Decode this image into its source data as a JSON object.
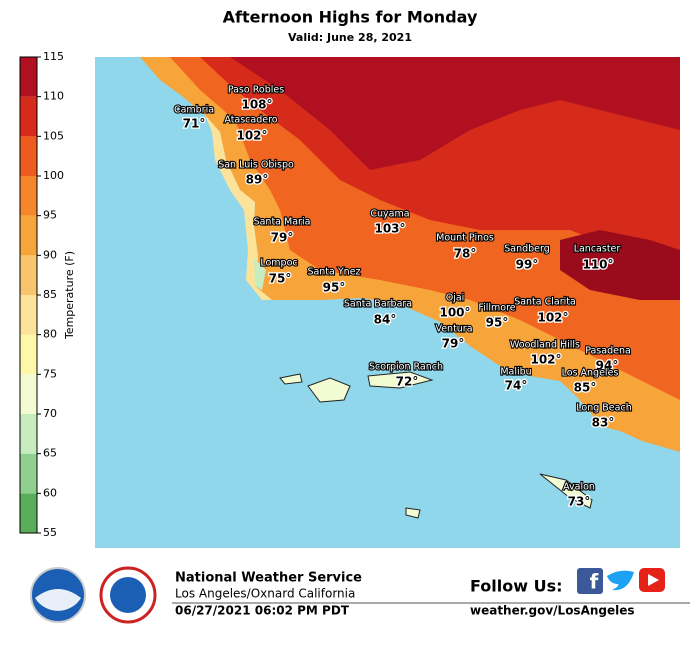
{
  "title": "Afternoon Highs for Monday",
  "subtitle": "Valid: June 28, 2021",
  "colorbar": {
    "label": "Temperature (F)",
    "ticks": [
      55,
      60,
      65,
      70,
      75,
      80,
      85,
      90,
      95,
      100,
      105,
      110,
      115
    ],
    "colors": [
      "#5aae5a",
      "#8fd08f",
      "#c6ecc0",
      "#f2fbd2",
      "#fff7a8",
      "#fde39a",
      "#f9c46e",
      "#f7a43a",
      "#f5862a",
      "#ee5b1e",
      "#d62a1a",
      "#b01020"
    ]
  },
  "cities": [
    {
      "name": "Cambria",
      "temp": "71°"
    },
    {
      "name": "Paso Robles",
      "temp": "108°"
    },
    {
      "name": "Atascadero",
      "temp": "102°"
    },
    {
      "name": "San Luis Obispo",
      "temp": "89°"
    },
    {
      "name": "Santa Maria",
      "temp": "79°"
    },
    {
      "name": "Lompoc",
      "temp": "75°"
    },
    {
      "name": "Santa Ynez",
      "temp": "95°"
    },
    {
      "name": "Cuyama",
      "temp": "103°"
    },
    {
      "name": "Santa Barbara",
      "temp": "84°"
    },
    {
      "name": "Mount Pinos",
      "temp": "78°"
    },
    {
      "name": "Ojai",
      "temp": "100°"
    },
    {
      "name": "Ventura",
      "temp": "79°"
    },
    {
      "name": "Fillmore",
      "temp": "95°"
    },
    {
      "name": "Sandberg",
      "temp": "99°"
    },
    {
      "name": "Lancaster",
      "temp": "110°"
    },
    {
      "name": "Santa Clarita",
      "temp": "102°"
    },
    {
      "name": "Woodland Hills",
      "temp": "102°"
    },
    {
      "name": "Pasadena",
      "temp": "94°"
    },
    {
      "name": "Malibu",
      "temp": "74°"
    },
    {
      "name": "Los Angeles",
      "temp": "85°"
    },
    {
      "name": "Long Beach",
      "temp": "83°"
    },
    {
      "name": "Scorpion Ranch",
      "temp": "72°"
    },
    {
      "name": "Avalon",
      "temp": "73°"
    }
  ],
  "footer": {
    "agency": "National Weather Service",
    "office": "Los Angeles/Oxnard California",
    "issued": "06/27/2021 06:02 PM PDT",
    "follow": "Follow Us:",
    "website": "weather.gov/LosAngeles"
  }
}
